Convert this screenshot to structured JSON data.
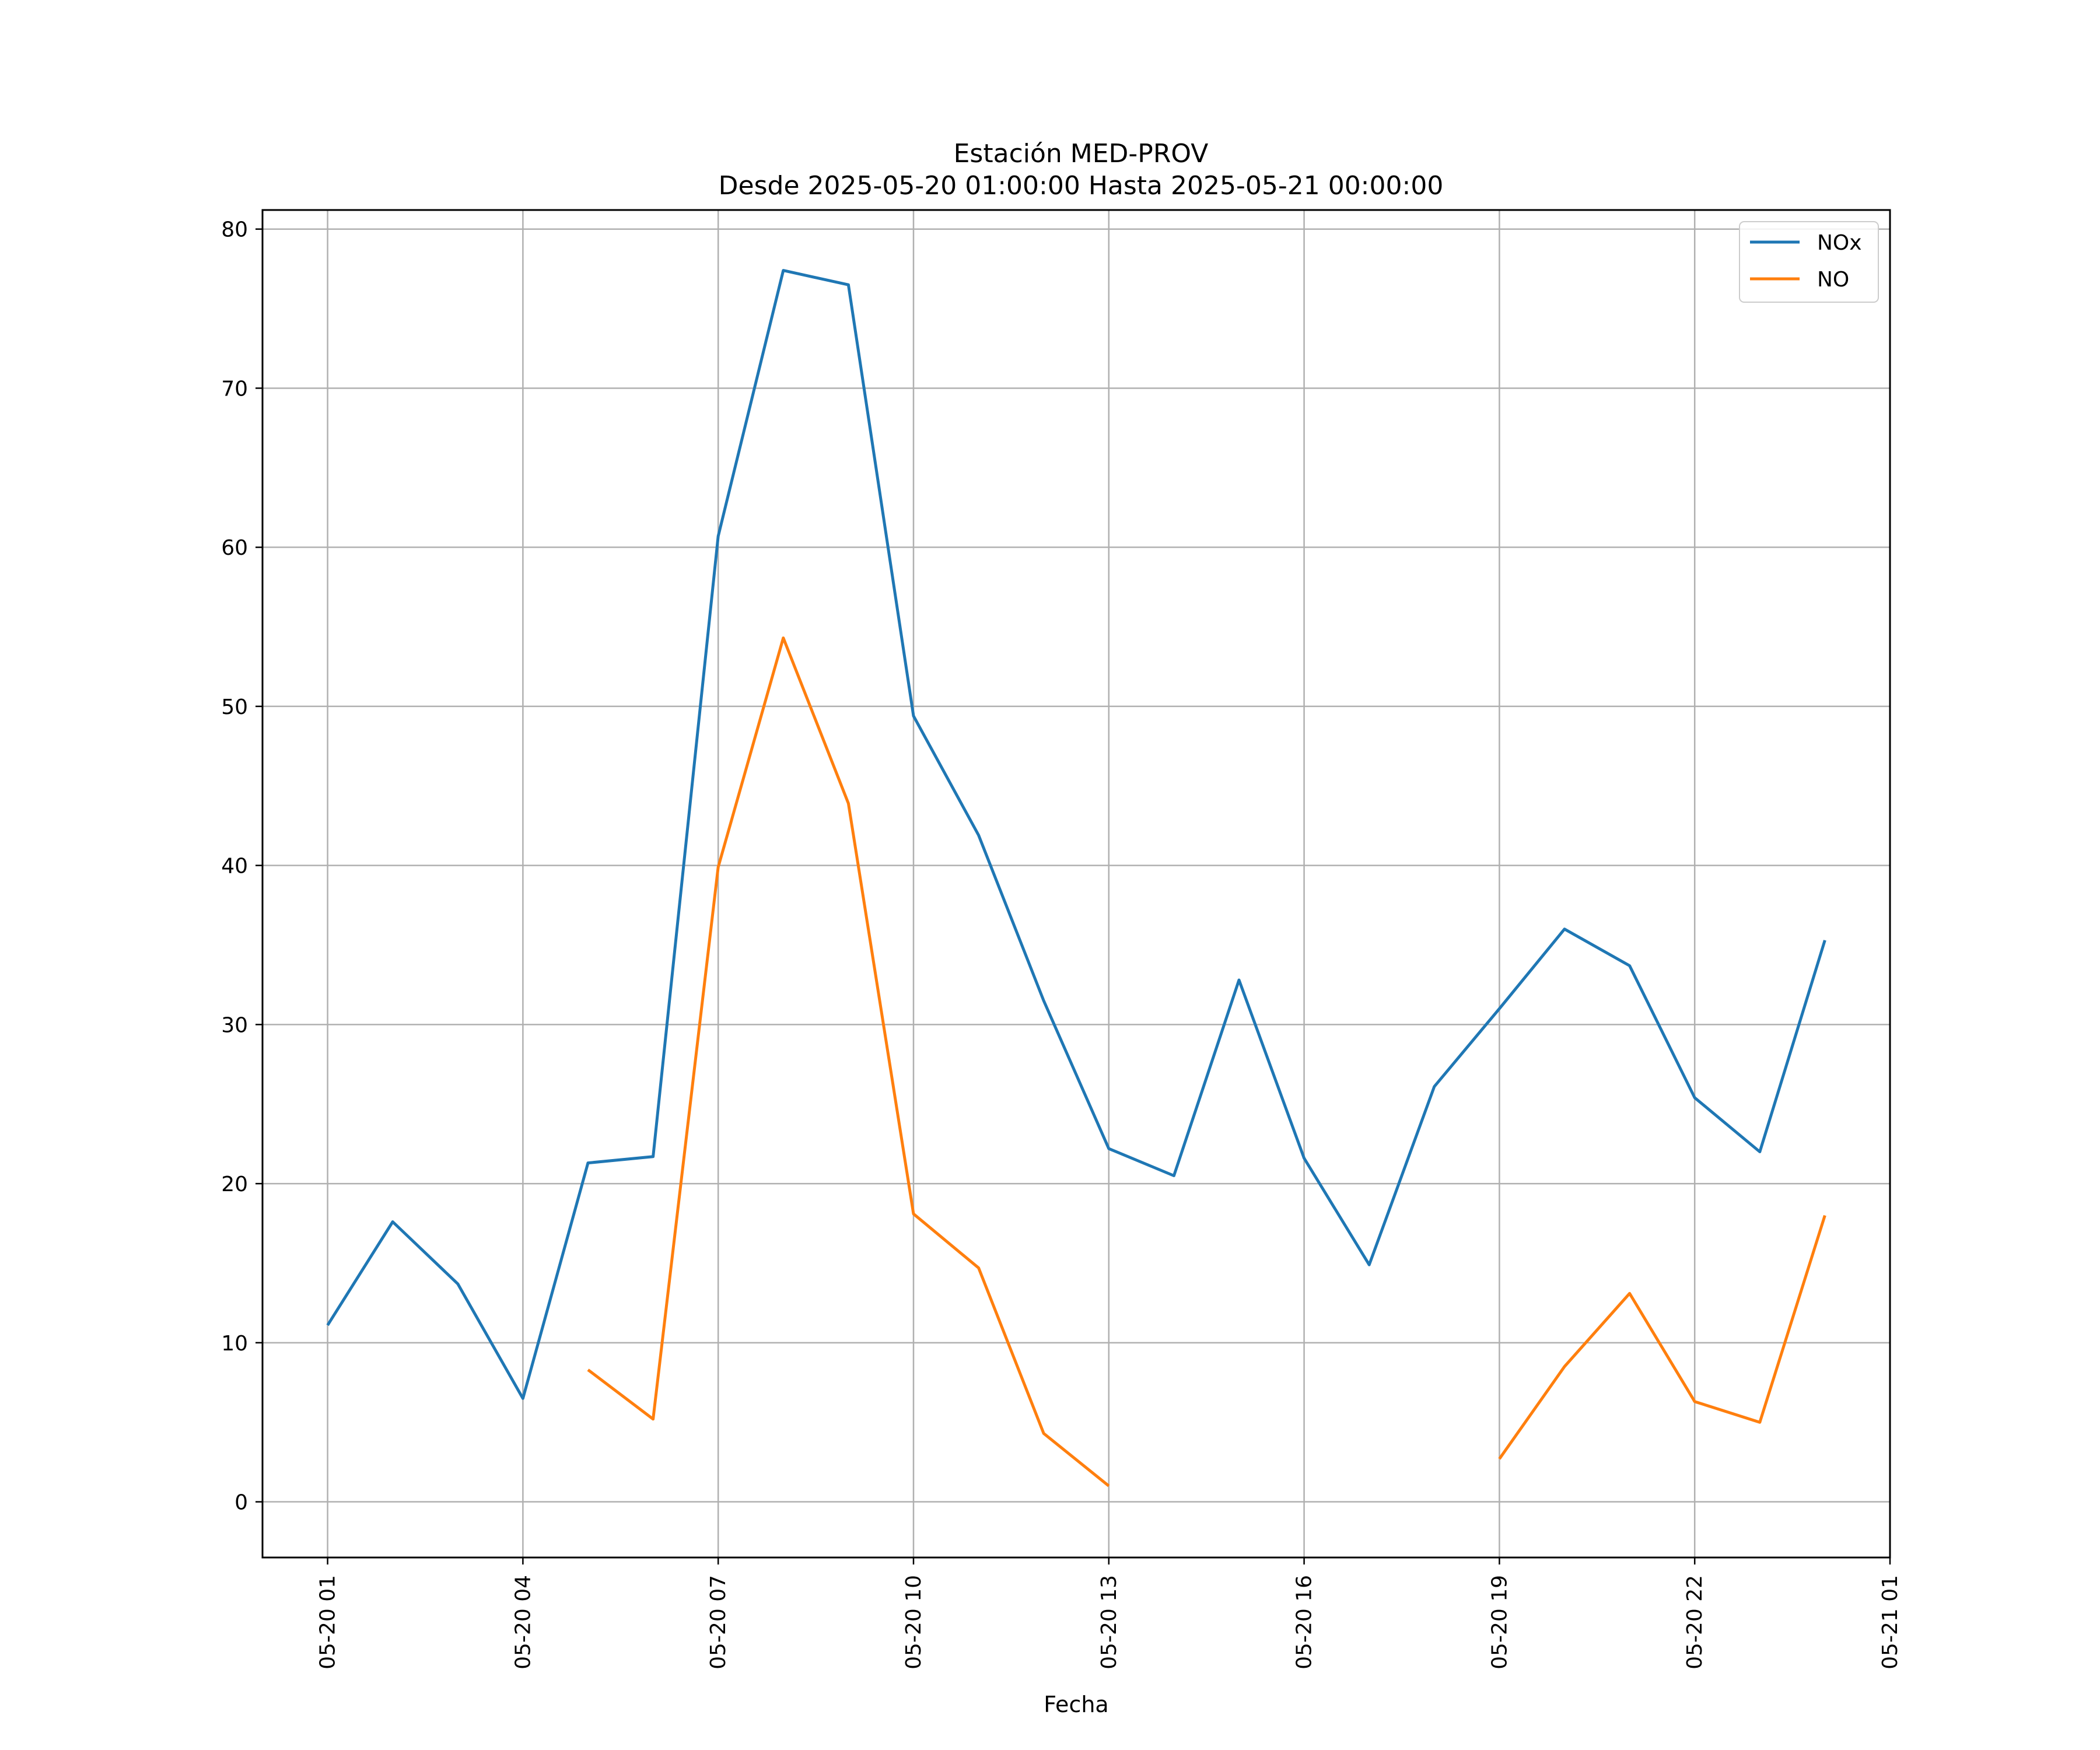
{
  "chart_data": {
    "type": "line",
    "title": "Estación MED-PROV",
    "subtitle": "Desde 2025-05-20 01:00:00 Hasta 2025-05-21 00:00:00",
    "xlabel": "Fecha",
    "ylabel": "",
    "x": [
      "05-20 01",
      "05-20 02",
      "05-20 03",
      "05-20 04",
      "05-20 05",
      "05-20 06",
      "05-20 07",
      "05-20 08",
      "05-20 09",
      "05-20 10",
      "05-20 11",
      "05-20 12",
      "05-20 13",
      "05-20 14",
      "05-20 15",
      "05-20 16",
      "05-20 17",
      "05-20 18",
      "05-20 19",
      "05-20 20",
      "05-20 21",
      "05-20 22",
      "05-20 23",
      "05-21 00"
    ],
    "xticks": [
      "05-20 01",
      "05-20 04",
      "05-20 07",
      "05-20 10",
      "05-20 13",
      "05-20 16",
      "05-20 19",
      "05-20 22",
      "05-21 01"
    ],
    "xlim": [
      "05-20 00",
      "05-21 01"
    ],
    "yticks": [
      0,
      10,
      20,
      30,
      40,
      50,
      60,
      70,
      80
    ],
    "ylim": [
      -3.5,
      81.2
    ],
    "grid": true,
    "legend_position": "top-right",
    "series": [
      {
        "name": "NOx",
        "color": "#1f77b4",
        "values": [
          11.1,
          17.6,
          13.7,
          6.5,
          21.3,
          21.7,
          60.7,
          77.4,
          76.5,
          49.4,
          41.9,
          31.5,
          22.2,
          20.5,
          32.8,
          21.6,
          14.9,
          26.1,
          31.0,
          36.0,
          33.7,
          25.4,
          22.0,
          35.3
        ]
      },
      {
        "name": "NO",
        "color": "#ff7f0e",
        "values": [
          null,
          null,
          null,
          null,
          8.3,
          5.2,
          39.9,
          54.3,
          43.9,
          18.1,
          14.7,
          4.3,
          1.0,
          null,
          null,
          null,
          null,
          null,
          2.7,
          8.5,
          13.1,
          6.3,
          5.0,
          18.0
        ]
      }
    ]
  }
}
